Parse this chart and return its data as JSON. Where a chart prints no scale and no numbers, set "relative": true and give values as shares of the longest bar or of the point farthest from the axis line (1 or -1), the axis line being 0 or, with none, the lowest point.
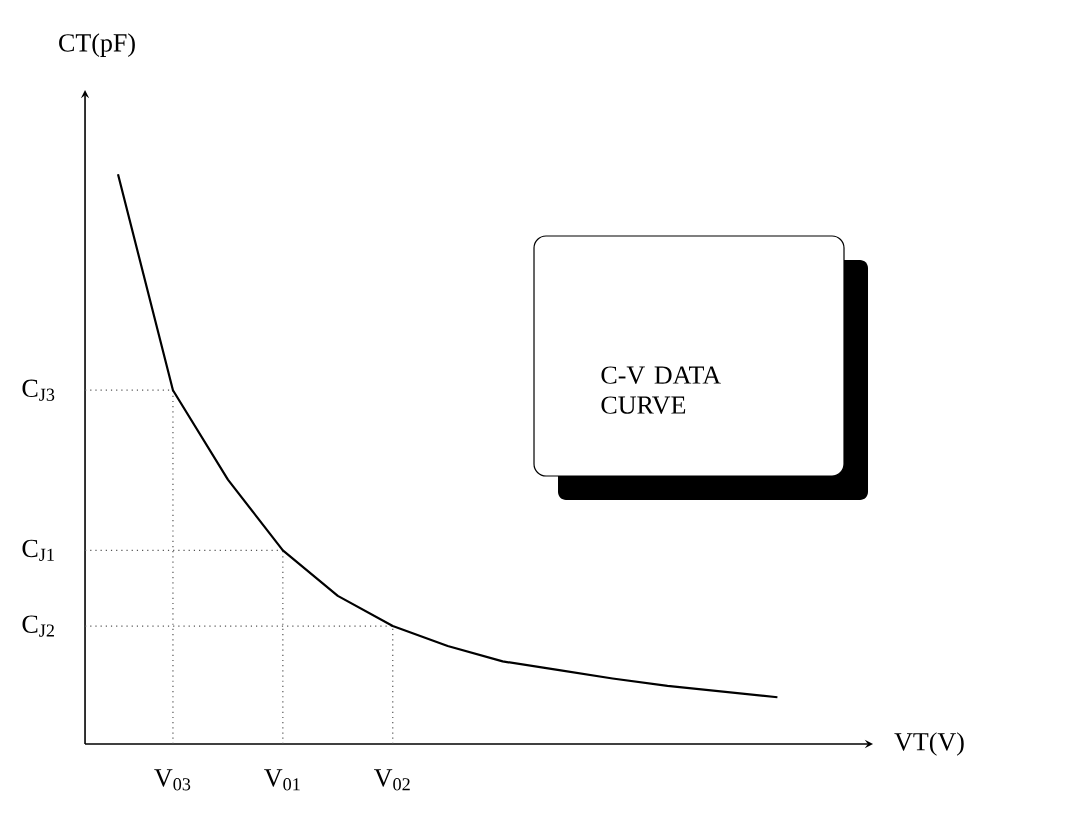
{
  "chart_data": {
    "type": "line",
    "relative": true,
    "xlabel": "VT(V)",
    "ylabel": "CT(pF)",
    "categories": [
      null,
      "V$_{03}$",
      null,
      "V$_{01}$",
      null,
      "V$_{02}$",
      null,
      null,
      null,
      null,
      null,
      null,
      null
    ],
    "series": [
      {
        "color": "#000000",
        "values": [
          1,
          0.621,
          0.464,
          0.34,
          0.26,
          0.207,
          0.172,
          0.145,
          0.13,
          0.115,
          0.102,
          0.092,
          0.082
        ]
      }
    ],
    "ref_lines": [
      {
        "axis": "y",
        "value": 0.621,
        "label": "C$_{J3}$",
        "line_style": "dotted",
        "color": "#555555"
      },
      {
        "axis": "y",
        "value": 0.34,
        "label": "C$_{J1}$",
        "line_style": "dotted",
        "color": "#555555"
      },
      {
        "axis": "y",
        "value": 0.207,
        "label": "C$_{J2}$",
        "line_style": "dotted",
        "color": "#555555"
      },
      {
        "axis": "x",
        "value": "V$_{03}$",
        "line_style": "dotted",
        "color": "#555555"
      },
      {
        "axis": "x",
        "value": "V$_{01}$",
        "line_style": "dotted",
        "color": "#555555"
      },
      {
        "axis": "x",
        "value": "V$_{02}$",
        "line_style": "dotted",
        "color": "#555555"
      }
    ],
    "annotations": [
      "C-V DATA CURVE"
    ]
  }
}
